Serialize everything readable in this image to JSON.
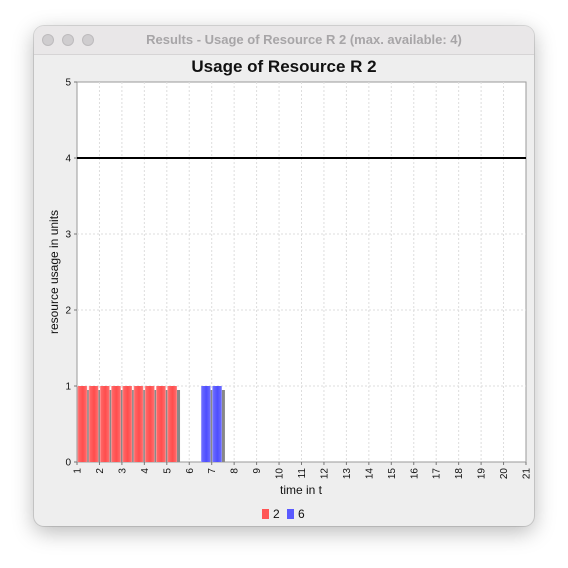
{
  "window": {
    "title": "Results - Usage of Resource R 2 (max. available: 4)"
  },
  "chart_data": {
    "type": "bar",
    "title": "Usage of Resource R 2",
    "xlabel": "time in t",
    "ylabel": "resource usage in units",
    "xlim": [
      1,
      21
    ],
    "ylim": [
      0,
      5
    ],
    "x_ticks": [
      "1",
      "2",
      "3",
      "4",
      "5",
      "6",
      "7",
      "8",
      "9",
      "10",
      "11",
      "12",
      "13",
      "14",
      "15",
      "16",
      "17",
      "18",
      "19",
      "20",
      "21"
    ],
    "y_ticks": [
      "0",
      "1",
      "2",
      "3",
      "4",
      "5"
    ],
    "capacity_line": 4,
    "grid": true,
    "legend_position": "bottom",
    "series": [
      {
        "name": "2",
        "color": "#ff5555",
        "intervals": [
          [
            1,
            5.5
          ]
        ],
        "value": 1
      },
      {
        "name": "6",
        "color": "#5a5aff",
        "intervals": [
          [
            6.5,
            7.5
          ]
        ],
        "value": 1
      }
    ]
  }
}
